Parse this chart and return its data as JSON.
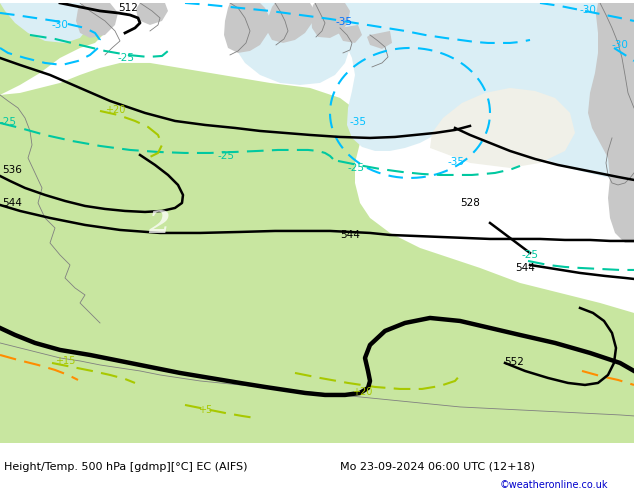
{
  "title_left": "Height/Temp. 500 hPa [gdmp][°C] EC (AIFS)",
  "title_right": "Mo 23-09-2024 06:00 UTC (12+18)",
  "credit": "©weatheronline.co.uk",
  "land_green": "#c8e6a0",
  "land_gray": "#c8c8c8",
  "sea_color": "#daeef5",
  "white_land": "#f0f0e8",
  "contour_height_color": "#000000",
  "contour_temp_cyan": "#00bfff",
  "contour_temp_teal": "#00c8a0",
  "contour_temp_yellow": "#a8c800",
  "contour_temp_orange": "#ff8c00",
  "figsize": [
    6.34,
    4.9
  ],
  "dpi": 100
}
